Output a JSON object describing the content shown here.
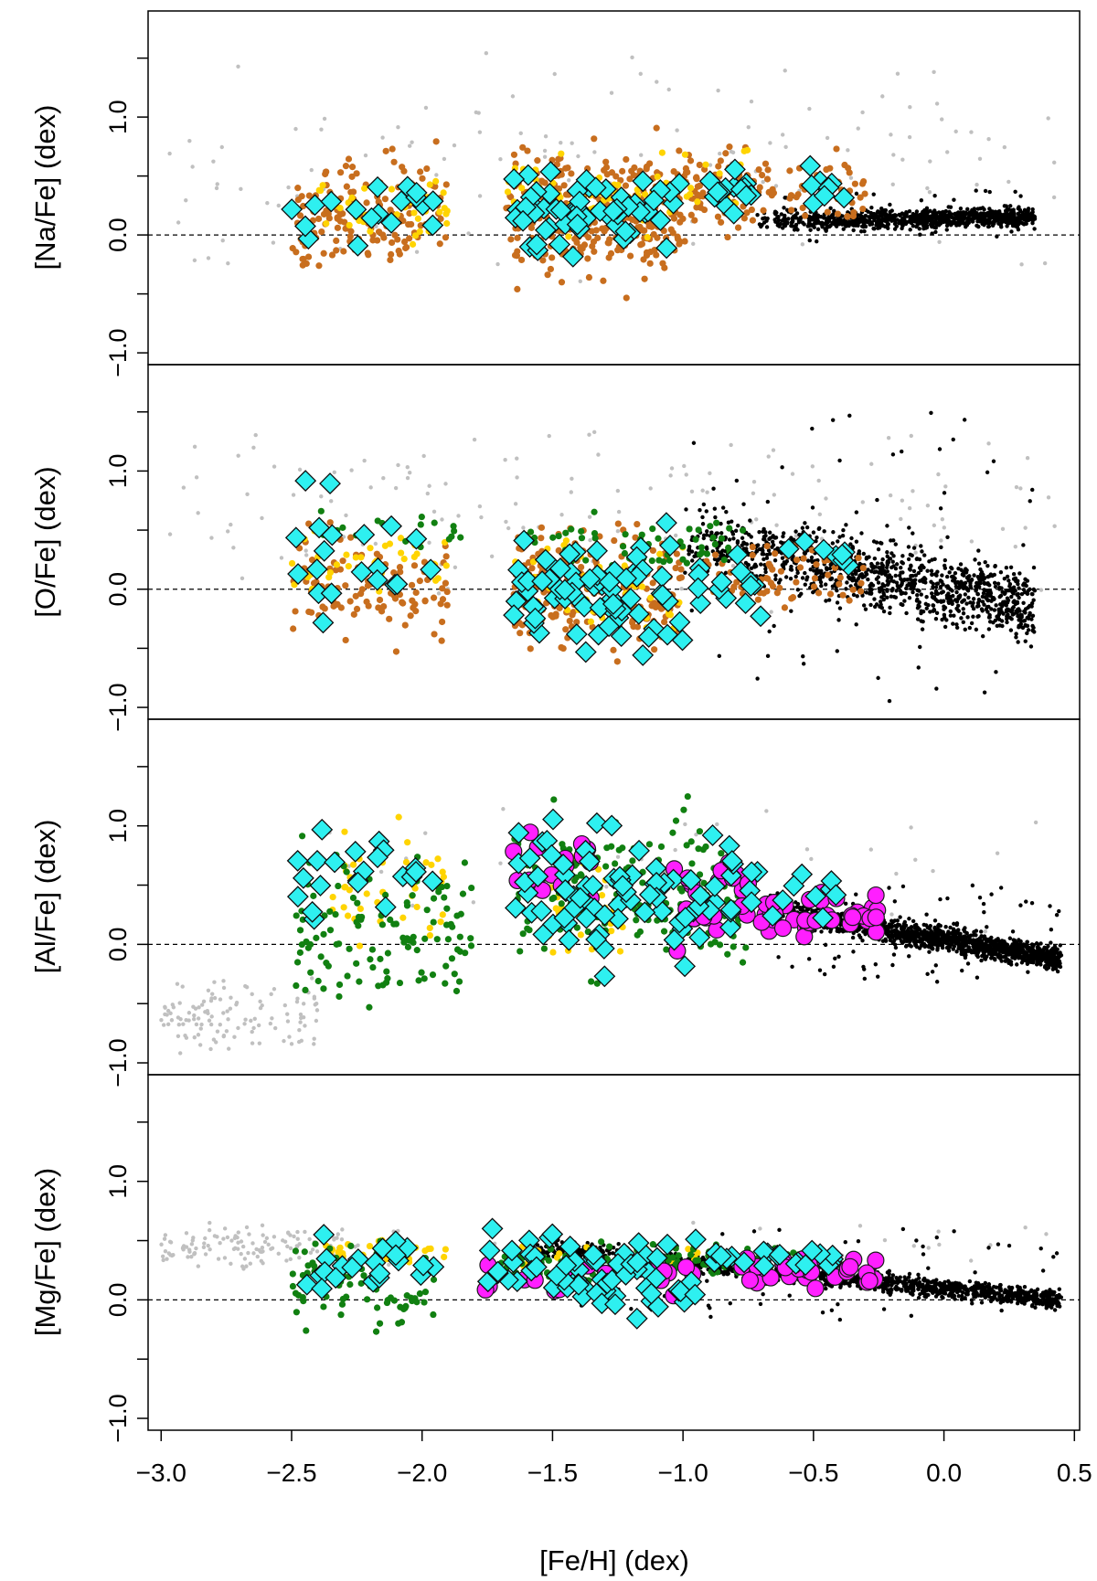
{
  "chart_data": [
    {
      "type": "scatter",
      "panel": "na",
      "ylabel": "[Na/Fe] (dex)",
      "xlim": [
        -3.05,
        0.52
      ],
      "ylim": [
        -1.1,
        1.9
      ],
      "yticks": [
        -1.0,
        0.0,
        1.0
      ],
      "ytick_labels": [
        "−1.0",
        "0.0",
        "1.0"
      ],
      "zero_line": true,
      "clusters": [
        {
          "series": "orange",
          "x_range": [
            -2.5,
            -1.9
          ],
          "y_range": [
            -0.5,
            0.9
          ],
          "n": 150
        },
        {
          "series": "orange",
          "x_range": [
            -1.68,
            -1.0
          ],
          "y_range": [
            -0.6,
            0.95
          ],
          "n": 320
        },
        {
          "series": "orange",
          "x_range": [
            -1.0,
            -0.65
          ],
          "y_range": [
            -0.1,
            0.85
          ],
          "n": 90
        },
        {
          "series": "orange",
          "x_range": [
            -0.6,
            -0.28
          ],
          "y_range": [
            0.0,
            0.8
          ],
          "n": 45
        },
        {
          "series": "yellow",
          "x_range": [
            -2.5,
            -1.9
          ],
          "y_range": [
            -0.2,
            0.7
          ],
          "n": 45
        },
        {
          "series": "yellow",
          "x_range": [
            -1.68,
            -1.05
          ],
          "y_range": [
            -0.2,
            0.8
          ],
          "n": 70
        },
        {
          "series": "yellow",
          "x_range": [
            -1.0,
            -0.7
          ],
          "y_range": [
            0.1,
            0.85
          ],
          "n": 18
        },
        {
          "series": "black",
          "x_range": [
            -0.72,
            0.35
          ],
          "y_range": [
            -0.1,
            0.4
          ],
          "n": 900,
          "trend": [
            [
              -0.72,
              0.12
            ],
            [
              0.35,
              0.15
            ]
          ],
          "spread": 0.08
        },
        {
          "series": "gray",
          "x_range": [
            -3.0,
            0.45
          ],
          "y_range": [
            -0.6,
            1.8
          ],
          "n": 140
        },
        {
          "series": "cyan",
          "x_range": [
            -2.5,
            -1.95
          ],
          "y_range": [
            -0.15,
            0.7
          ],
          "n": 18
        },
        {
          "series": "cyan",
          "x_range": [
            -1.65,
            -1.0
          ],
          "y_range": [
            -0.35,
            0.7
          ],
          "n": 60
        },
        {
          "series": "cyan",
          "x_range": [
            -0.95,
            -0.7
          ],
          "y_range": [
            0.1,
            0.6
          ],
          "n": 14
        },
        {
          "series": "cyan",
          "x_range": [
            -0.58,
            -0.35
          ],
          "y_range": [
            0.1,
            0.7
          ],
          "n": 8
        }
      ]
    },
    {
      "type": "scatter",
      "panel": "o",
      "ylabel": "[O/Fe] (dex)",
      "xlim": [
        -3.05,
        0.52
      ],
      "ylim": [
        -1.1,
        1.9
      ],
      "yticks": [
        -1.0,
        0.0,
        1.0
      ],
      "ytick_labels": [
        "−1.0",
        "0.0",
        "1.0"
      ],
      "zero_line": true,
      "clusters": [
        {
          "series": "orange",
          "x_range": [
            -2.5,
            -1.9
          ],
          "y_range": [
            -0.6,
            0.7
          ],
          "n": 110
        },
        {
          "series": "orange",
          "x_range": [
            -1.65,
            -1.0
          ],
          "y_range": [
            -0.7,
            0.7
          ],
          "n": 260
        },
        {
          "series": "orange",
          "x_range": [
            -0.95,
            -0.3
          ],
          "y_range": [
            -0.3,
            0.6
          ],
          "n": 80
        },
        {
          "series": "yellow",
          "x_range": [
            -2.5,
            -1.9
          ],
          "y_range": [
            -0.1,
            0.6
          ],
          "n": 40
        },
        {
          "series": "yellow",
          "x_range": [
            -1.65,
            -1.0
          ],
          "y_range": [
            -0.7,
            0.6
          ],
          "n": 60
        },
        {
          "series": "green",
          "x_range": [
            -2.4,
            -1.85
          ],
          "y_range": [
            0.3,
            0.7
          ],
          "n": 20
        },
        {
          "series": "green",
          "x_range": [
            -1.65,
            -0.75
          ],
          "y_range": [
            0.0,
            0.7
          ],
          "n": 60
        },
        {
          "series": "black",
          "x_range": [
            -1.0,
            0.35
          ],
          "y_range": [
            -1.05,
            1.5
          ],
          "n": 1100,
          "trend": [
            [
              -1.0,
              0.45
            ],
            [
              0.35,
              -0.15
            ]
          ],
          "spread": 0.3
        },
        {
          "series": "gray",
          "x_range": [
            -3.0,
            0.45
          ],
          "y_range": [
            -0.5,
            1.9
          ],
          "n": 150
        },
        {
          "series": "cyan",
          "x_range": [
            -2.5,
            -1.95
          ],
          "y_range": [
            -0.45,
            1.1
          ],
          "n": 20
        },
        {
          "series": "cyan",
          "x_range": [
            -1.65,
            -1.0
          ],
          "y_range": [
            -0.85,
            0.7
          ],
          "n": 70
        },
        {
          "series": "cyan",
          "x_range": [
            -0.95,
            -0.7
          ],
          "y_range": [
            -0.5,
            0.55
          ],
          "n": 14
        },
        {
          "series": "cyan",
          "x_range": [
            -0.6,
            -0.35
          ],
          "y_range": [
            0.1,
            0.5
          ],
          "n": 8
        }
      ]
    },
    {
      "type": "scatter",
      "panel": "al",
      "ylabel": "[Al/Fe] (dex)",
      "xlim": [
        -3.05,
        0.52
      ],
      "ylim": [
        -1.1,
        1.9
      ],
      "yticks": [
        -1.0,
        0.0,
        1.0
      ],
      "ytick_labels": [
        "−1.0",
        "0.0",
        "1.0"
      ],
      "zero_line": true,
      "clusters": [
        {
          "series": "green",
          "x_range": [
            -2.5,
            -1.8
          ],
          "y_range": [
            -0.7,
            1.0
          ],
          "n": 120
        },
        {
          "series": "green",
          "x_range": [
            -1.65,
            -0.75
          ],
          "y_range": [
            -0.5,
            1.35
          ],
          "n": 200
        },
        {
          "series": "yellow",
          "x_range": [
            -2.35,
            -1.9
          ],
          "y_range": [
            -0.2,
            1.2
          ],
          "n": 45
        },
        {
          "series": "yellow",
          "x_range": [
            -1.55,
            -1.2
          ],
          "y_range": [
            -0.3,
            1.0
          ],
          "n": 45
        },
        {
          "series": "magenta",
          "x_range": [
            -1.65,
            -1.35
          ],
          "y_range": [
            0.2,
            1.1
          ],
          "n": 18
        },
        {
          "series": "magenta",
          "x_range": [
            -1.05,
            -0.75
          ],
          "y_range": [
            -0.2,
            0.9
          ],
          "n": 22
        },
        {
          "series": "magenta",
          "x_range": [
            -0.7,
            -0.25
          ],
          "y_range": [
            0.0,
            0.5
          ],
          "n": 38
        },
        {
          "series": "black",
          "x_range": [
            -0.7,
            0.45
          ],
          "y_range": [
            -0.35,
            0.5
          ],
          "n": 1500,
          "trend": [
            [
              -0.7,
              0.3
            ],
            [
              0.45,
              -0.12
            ]
          ],
          "spread": 0.1
        },
        {
          "series": "gray",
          "x_range": [
            -3.0,
            -2.4
          ],
          "y_range": [
            -1.0,
            -0.2
          ],
          "n": 120
        },
        {
          "series": "gray",
          "x_range": [
            -2.4,
            0.45
          ],
          "y_range": [
            -0.3,
            1.6
          ],
          "n": 40
        },
        {
          "series": "cyan",
          "x_range": [
            -2.5,
            -1.95
          ],
          "y_range": [
            0.0,
            1.1
          ],
          "n": 22
        },
        {
          "series": "cyan",
          "x_range": [
            -1.65,
            -0.8
          ],
          "y_range": [
            -0.35,
            1.2
          ],
          "n": 80
        },
        {
          "series": "cyan",
          "x_range": [
            -0.85,
            -0.4
          ],
          "y_range": [
            0.1,
            0.8
          ],
          "n": 14
        }
      ]
    },
    {
      "type": "scatter",
      "panel": "mg",
      "ylabel": "[Mg/Fe] (dex)",
      "xlabel": "[Fe/H] (dex)",
      "xlim": [
        -3.05,
        0.52
      ],
      "ylim": [
        -1.1,
        1.9
      ],
      "yticks": [
        -1.0,
        0.0,
        1.0
      ],
      "ytick_labels": [
        "−1.0",
        "0.0",
        "1.0"
      ],
      "xticks": [
        -3.0,
        -2.5,
        -2.0,
        -1.5,
        -1.0,
        -0.5,
        0.0,
        0.5
      ],
      "xtick_labels": [
        "−3.0",
        "−2.5",
        "−2.0",
        "−1.5",
        "−1.0",
        "−0.5",
        "0.0",
        "0.5"
      ],
      "zero_line": true,
      "clusters": [
        {
          "series": "green",
          "x_range": [
            -2.5,
            -1.95
          ],
          "y_range": [
            -0.4,
            0.6
          ],
          "n": 80
        },
        {
          "series": "green",
          "x_range": [
            -1.7,
            -0.55
          ],
          "y_range": [
            0.1,
            0.55
          ],
          "n": 160
        },
        {
          "series": "yellow",
          "x_range": [
            -2.4,
            -1.9
          ],
          "y_range": [
            0.2,
            0.6
          ],
          "n": 30
        },
        {
          "series": "yellow",
          "x_range": [
            -1.65,
            -0.6
          ],
          "y_range": [
            0.15,
            0.55
          ],
          "n": 35
        },
        {
          "series": "magenta",
          "x_range": [
            -1.85,
            -0.95
          ],
          "y_range": [
            -0.1,
            0.5
          ],
          "n": 24
        },
        {
          "series": "magenta",
          "x_range": [
            -0.8,
            -0.25
          ],
          "y_range": [
            0.05,
            0.45
          ],
          "n": 32
        },
        {
          "series": "black",
          "x_range": [
            -1.6,
            0.45
          ],
          "y_range": [
            -0.2,
            0.6
          ],
          "n": 1400,
          "trend": [
            [
              -1.6,
              0.45
            ],
            [
              0.45,
              0.0
            ]
          ],
          "spread": 0.08
        },
        {
          "series": "gray",
          "x_range": [
            -3.0,
            -2.3
          ],
          "y_range": [
            0.2,
            0.7
          ],
          "n": 130
        },
        {
          "series": "gray",
          "x_range": [
            -2.3,
            0.45
          ],
          "y_range": [
            0.0,
            0.8
          ],
          "n": 40
        },
        {
          "series": "cyan",
          "x_range": [
            -2.45,
            -1.95
          ],
          "y_range": [
            0.0,
            0.65
          ],
          "n": 22
        },
        {
          "series": "cyan",
          "x_range": [
            -1.75,
            -0.95
          ],
          "y_range": [
            -0.3,
            0.7
          ],
          "n": 70
        },
        {
          "series": "cyan",
          "x_range": [
            -0.9,
            -0.4
          ],
          "y_range": [
            0.2,
            0.5
          ],
          "n": 20
        }
      ]
    }
  ],
  "series_styles": {
    "gray": {
      "fill": "#c0c0c0",
      "stroke": "none",
      "marker": "dot"
    },
    "black": {
      "fill": "#000000",
      "stroke": "none",
      "marker": "dot"
    },
    "orange": {
      "fill": "#c86e1e",
      "stroke": "none",
      "marker": "dot"
    },
    "yellow": {
      "fill": "#ffd400",
      "stroke": "none",
      "marker": "dot"
    },
    "green": {
      "fill": "#118011",
      "stroke": "none",
      "marker": "dot"
    },
    "magenta": {
      "fill": "#ff1fff",
      "stroke": "#1a1a1a",
      "marker": "circle"
    },
    "cyan": {
      "fill": "#2ef0f0",
      "stroke": "#0d0d0d",
      "marker": "diamond"
    }
  },
  "draw_order": [
    "gray",
    "black",
    "orange",
    "yellow",
    "green",
    "magenta",
    "cyan"
  ]
}
